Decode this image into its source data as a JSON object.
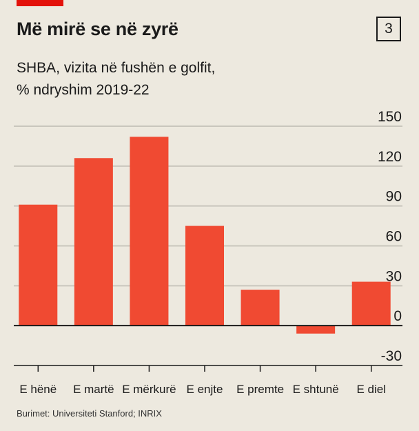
{
  "header": {
    "title": "Më mirë se në zyrë",
    "badge": "3",
    "subtitle_line1": "SHBA, vizita në fushën e golfit,",
    "subtitle_line2": "% ndryshim 2019-22"
  },
  "source": "Burimet: Universiteti Stanford; INRIX",
  "colors": {
    "accent": "#e3120b",
    "bar": "#f04a32",
    "background": "#ede9df",
    "grid": "#c9c6bd",
    "axis": "#1a1a1a"
  },
  "chart_data": {
    "type": "bar",
    "title": "Më mirë se në zyrë",
    "subtitle": "SHBA, vizita në fushën e golfit, % ndryshim 2019-22",
    "xlabel": "",
    "ylabel": "",
    "categories": [
      "E hënë",
      "E martë",
      "E mërkurë",
      "E enjte",
      "E premte",
      "E shtunë",
      "E diel"
    ],
    "values": [
      91,
      126,
      142,
      75,
      27,
      -6,
      33
    ],
    "ylim": [
      -30,
      150
    ],
    "yticks": [
      -30,
      0,
      30,
      60,
      90,
      120,
      150
    ],
    "grid": true,
    "y_axis_side": "right"
  }
}
